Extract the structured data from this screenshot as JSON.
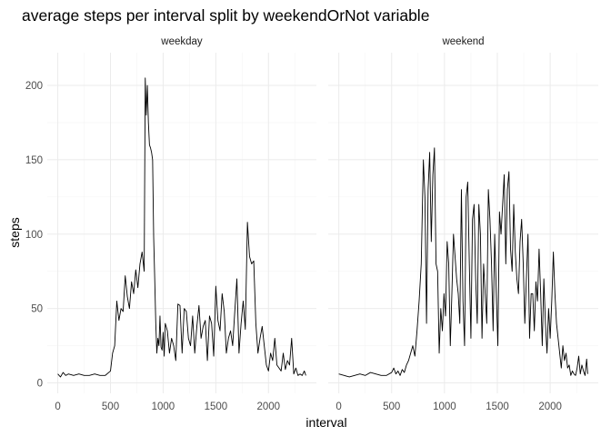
{
  "chart_data": {
    "type": "line",
    "title": "average steps per interval split by weekendOrNot variable",
    "xlabel": "interval",
    "ylabel": "steps",
    "xlim": [
      -100,
      2455
    ],
    "ylim": [
      -7,
      222
    ],
    "x_ticks": [
      0,
      500,
      1000,
      1500,
      2000
    ],
    "x_tick_labels": [
      "0",
      "500",
      "1000",
      "1500",
      "2000"
    ],
    "y_ticks": [
      0,
      50,
      100,
      150,
      200
    ],
    "y_tick_labels": [
      "0",
      "50",
      "100",
      "150",
      "200"
    ],
    "grid": true,
    "legend": "none",
    "panels": [
      {
        "label": "weekday",
        "x": [
          0,
          25,
          50,
          75,
          100,
          150,
          200,
          250,
          300,
          350,
          400,
          450,
          500,
          520,
          540,
          560,
          580,
          600,
          620,
          640,
          660,
          680,
          700,
          720,
          740,
          760,
          780,
          800,
          820,
          830,
          840,
          850,
          860,
          870,
          880,
          890,
          900,
          910,
          920,
          930,
          940,
          950,
          960,
          970,
          980,
          990,
          1000,
          1010,
          1020,
          1040,
          1060,
          1080,
          1100,
          1120,
          1140,
          1160,
          1180,
          1200,
          1220,
          1240,
          1260,
          1280,
          1300,
          1320,
          1340,
          1360,
          1380,
          1400,
          1420,
          1440,
          1460,
          1480,
          1500,
          1520,
          1540,
          1560,
          1580,
          1600,
          1620,
          1640,
          1660,
          1680,
          1700,
          1720,
          1740,
          1760,
          1780,
          1800,
          1820,
          1840,
          1860,
          1880,
          1900,
          1920,
          1940,
          1960,
          1980,
          2000,
          2020,
          2040,
          2060,
          2080,
          2100,
          2120,
          2140,
          2160,
          2180,
          2200,
          2220,
          2240,
          2260,
          2280,
          2300,
          2320,
          2340,
          2355
        ],
        "y": [
          6,
          4,
          7,
          5,
          6,
          5,
          6,
          5,
          5,
          6,
          5,
          5,
          8,
          20,
          25,
          55,
          42,
          50,
          48,
          72,
          58,
          50,
          68,
          60,
          76,
          64,
          80,
          88,
          75,
          205,
          180,
          200,
          175,
          160,
          158,
          155,
          150,
          98,
          70,
          40,
          20,
          30,
          25,
          45,
          24,
          22,
          34,
          18,
          40,
          35,
          20,
          30,
          25,
          15,
          53,
          52,
          20,
          50,
          48,
          30,
          25,
          45,
          20,
          38,
          52,
          30,
          38,
          42,
          15,
          45,
          40,
          18,
          65,
          42,
          35,
          60,
          48,
          20,
          30,
          35,
          25,
          48,
          70,
          20,
          40,
          55,
          36,
          108,
          85,
          80,
          82,
          40,
          20,
          30,
          38,
          25,
          12,
          8,
          20,
          15,
          30,
          12,
          10,
          8,
          20,
          9,
          15,
          12,
          30,
          6,
          10,
          5,
          6,
          5,
          8,
          5
        ]
      },
      {
        "label": "weekend",
        "x": [
          0,
          50,
          100,
          150,
          200,
          250,
          300,
          350,
          400,
          450,
          500,
          520,
          540,
          560,
          580,
          600,
          620,
          640,
          660,
          680,
          700,
          720,
          740,
          760,
          780,
          800,
          815,
          830,
          845,
          860,
          875,
          890,
          905,
          920,
          935,
          950,
          965,
          980,
          995,
          1010,
          1025,
          1040,
          1055,
          1070,
          1085,
          1100,
          1115,
          1130,
          1145,
          1160,
          1175,
          1190,
          1205,
          1220,
          1235,
          1250,
          1265,
          1280,
          1295,
          1310,
          1325,
          1340,
          1355,
          1370,
          1385,
          1400,
          1415,
          1430,
          1445,
          1460,
          1475,
          1490,
          1505,
          1520,
          1535,
          1550,
          1565,
          1580,
          1595,
          1610,
          1625,
          1640,
          1655,
          1670,
          1685,
          1700,
          1715,
          1730,
          1745,
          1760,
          1775,
          1790,
          1805,
          1820,
          1835,
          1850,
          1865,
          1880,
          1895,
          1910,
          1925,
          1940,
          1955,
          1970,
          1985,
          2000,
          2015,
          2030,
          2045,
          2060,
          2075,
          2090,
          2105,
          2120,
          2135,
          2150,
          2165,
          2180,
          2195,
          2210,
          2225,
          2240,
          2255,
          2270,
          2285,
          2300,
          2315,
          2330,
          2345,
          2355
        ],
        "y": [
          6,
          5,
          4,
          5,
          6,
          5,
          7,
          6,
          5,
          5,
          7,
          10,
          6,
          8,
          5,
          9,
          7,
          12,
          15,
          20,
          25,
          18,
          35,
          55,
          80,
          150,
          125,
          40,
          130,
          155,
          95,
          140,
          158,
          80,
          75,
          20,
          50,
          35,
          60,
          45,
          95,
          80,
          25,
          60,
          100,
          85,
          70,
          60,
          40,
          130,
          55,
          25,
          125,
          135,
          80,
          30,
          110,
          120,
          70,
          40,
          120,
          100,
          30,
          80,
          60,
          40,
          130,
          110,
          80,
          35,
          100,
          60,
          25,
          115,
          100,
          120,
          140,
          80,
          130,
          142,
          90,
          75,
          120,
          88,
          70,
          60,
          95,
          110,
          80,
          40,
          70,
          100,
          30,
          60,
          60,
          35,
          68,
          55,
          90,
          60,
          25,
          70,
          40,
          20,
          50,
          30,
          55,
          88,
          60,
          40,
          30,
          20,
          10,
          25,
          15,
          20,
          10,
          12,
          5,
          8,
          6,
          5,
          10,
          18,
          6,
          12,
          8,
          5,
          16,
          6
        ]
      }
    ]
  }
}
